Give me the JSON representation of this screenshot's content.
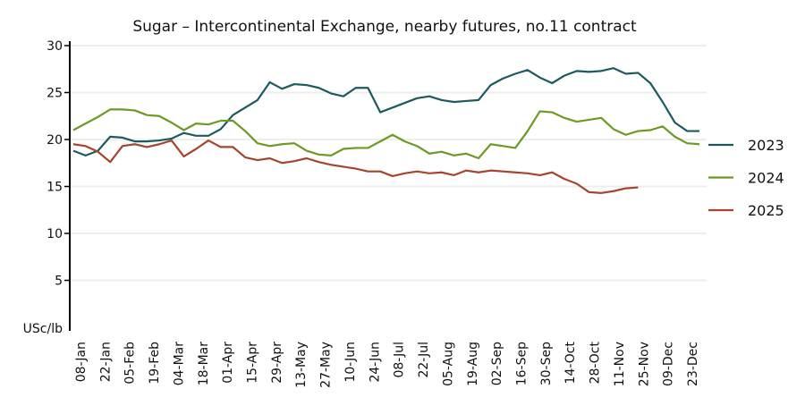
{
  "chart_data": {
    "type": "line",
    "title": "Sugar – Intercontinental Exchange, nearby futures, no.11 contract",
    "ylabel": "USc/lb",
    "xlabel": "",
    "ylim": [
      0,
      30
    ],
    "yticks": [
      5,
      10,
      15,
      20,
      25,
      30
    ],
    "ytick_labels": [
      "5",
      "10",
      "15",
      "20",
      "25",
      "30"
    ],
    "xtick_labels": [
      "08-Jan",
      "22-Jan",
      "05-Feb",
      "19-Feb",
      "04-Mar",
      "18-Mar",
      "01-Apr",
      "15-Apr",
      "29-Apr",
      "13-May",
      "27-May",
      "10-Jun",
      "24-Jun",
      "08-Jul",
      "22-Jul",
      "05-Aug",
      "19-Aug",
      "02-Sep",
      "16-Sep",
      "30-Sep",
      "14-Oct",
      "28-Oct",
      "11-Nov",
      "25-Nov",
      "09-Dec",
      "23-Dec"
    ],
    "grid": true,
    "legend_position": "right",
    "series": [
      {
        "name": "2023",
        "color": "#1b5b5f",
        "values": [
          18.8,
          18.3,
          18.8,
          20.3,
          20.2,
          19.8,
          19.8,
          19.9,
          20.1,
          20.7,
          20.4,
          20.4,
          21.1,
          22.6,
          23.4,
          24.2,
          26.1,
          25.4,
          25.9,
          25.8,
          25.5,
          24.9,
          24.6,
          25.5,
          25.5,
          22.9,
          23.4,
          23.9,
          24.4,
          24.6,
          24.2,
          24.0,
          24.1,
          24.2,
          25.8,
          26.5,
          27.0,
          27.4,
          26.6,
          26.0,
          26.8,
          27.3,
          27.2,
          27.3,
          27.6,
          27.0,
          27.1,
          26.0,
          24.0,
          21.8,
          20.9,
          20.9
        ]
      },
      {
        "name": "2024",
        "color": "#6c9a23",
        "values": [
          21.0,
          21.7,
          22.4,
          23.2,
          23.2,
          23.1,
          22.6,
          22.5,
          21.8,
          21.0,
          21.7,
          21.6,
          22.0,
          22.0,
          20.9,
          19.6,
          19.3,
          19.5,
          19.6,
          18.8,
          18.4,
          18.3,
          19.0,
          19.1,
          19.1,
          19.8,
          20.5,
          19.8,
          19.3,
          18.5,
          18.7,
          18.3,
          18.5,
          18.0,
          19.5,
          19.3,
          19.1,
          20.9,
          23.0,
          22.9,
          22.3,
          21.9,
          22.1,
          22.3,
          21.1,
          20.5,
          20.9,
          21.0,
          21.4,
          20.3,
          19.6,
          19.5
        ]
      },
      {
        "name": "2025",
        "color": "#a8442d",
        "values": [
          19.5,
          19.3,
          18.7,
          17.6,
          19.3,
          19.5,
          19.2,
          19.5,
          19.9,
          18.2,
          19.0,
          19.9,
          19.2,
          19.2,
          18.1,
          17.8,
          18.0,
          17.5,
          17.7,
          18.0,
          17.6,
          17.3,
          17.1,
          16.9,
          16.6,
          16.6,
          16.1,
          16.4,
          16.6,
          16.4,
          16.5,
          16.2,
          16.7,
          16.5,
          16.7,
          16.6,
          16.5,
          16.4,
          16.2,
          16.5,
          15.8,
          15.3,
          14.4,
          14.3,
          14.5,
          14.8,
          14.9
        ]
      }
    ]
  }
}
